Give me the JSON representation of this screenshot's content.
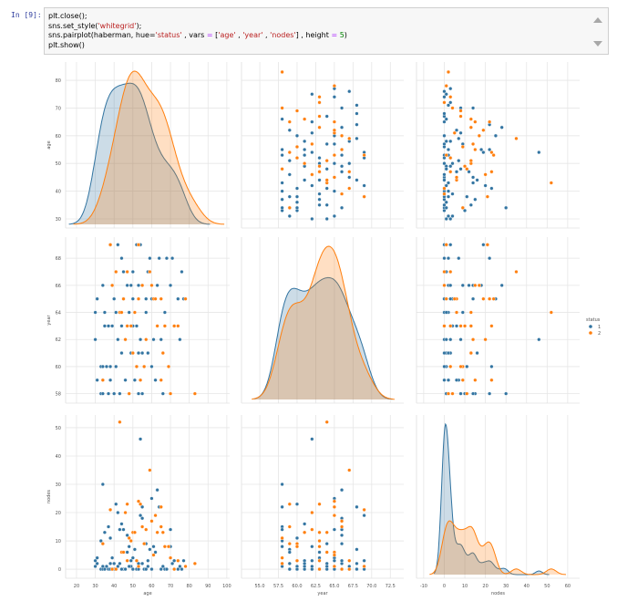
{
  "cell": {
    "prompt": "In [9]:",
    "lines": [
      [
        {
          "t": "plt.close();",
          "c": ""
        }
      ],
      [
        {
          "t": "sns.set_style(",
          "c": ""
        },
        {
          "t": "'whitegrid'",
          "c": "s"
        },
        {
          "t": ");",
          "c": ""
        }
      ],
      [
        {
          "t": "sns.pairplot(haberman, hue=",
          "c": ""
        },
        {
          "t": "'status'",
          "c": "s"
        },
        {
          "t": " , vars ",
          "c": ""
        },
        {
          "t": "=",
          "c": "o"
        },
        {
          "t": " [",
          "c": ""
        },
        {
          "t": "'age'",
          "c": "s"
        },
        {
          "t": " , ",
          "c": ""
        },
        {
          "t": "'year'",
          "c": "s"
        },
        {
          "t": " , ",
          "c": ""
        },
        {
          "t": "'nodes'",
          "c": "s"
        },
        {
          "t": "] , height ",
          "c": ""
        },
        {
          "t": "=",
          "c": "o"
        },
        {
          "t": " ",
          "c": ""
        },
        {
          "t": "5",
          "c": "k"
        },
        {
          "t": ")",
          "c": ""
        }
      ],
      [
        {
          "t": "plt.show()",
          "c": ""
        }
      ]
    ]
  },
  "chart_data": {
    "type": "scatter",
    "subtype": "pairplot",
    "vars": [
      "age",
      "year",
      "nodes"
    ],
    "hue": "status",
    "legend": {
      "title": "status",
      "entries": [
        {
          "label": "1",
          "color": "#3274a1"
        },
        {
          "label": "2",
          "color": "#ff7f0e"
        }
      ],
      "placement": "right"
    },
    "diagonal": "kde",
    "grid": true,
    "ticks": {
      "age": [
        "20",
        "30",
        "40",
        "50",
        "60",
        "70",
        "80",
        "90",
        "100"
      ],
      "year": [
        "55.0",
        "57.5",
        "60.0",
        "62.5",
        "65.0",
        "67.5",
        "70.0",
        "72.5"
      ],
      "year_y": [
        "58",
        "60",
        "62",
        "64",
        "66",
        "68"
      ],
      "age_y": [
        "30",
        "40",
        "50",
        "60",
        "70",
        "80"
      ],
      "nodes": [
        "-10",
        "0",
        "10",
        "20",
        "30",
        "40",
        "50",
        "60"
      ],
      "nodes_y": [
        "0",
        "10",
        "20",
        "30",
        "40",
        "50"
      ]
    },
    "axis_labels": {
      "age": "age",
      "year": "year",
      "nodes": "nodes"
    },
    "points": [
      [
        30,
        64,
        1,
        1
      ],
      [
        30,
        62,
        3,
        1
      ],
      [
        31,
        59,
        2,
        1
      ],
      [
        31,
        65,
        4,
        1
      ],
      [
        33,
        58,
        10,
        1
      ],
      [
        33,
        60,
        0,
        1
      ],
      [
        34,
        59,
        0,
        1
      ],
      [
        34,
        66,
        9,
        1
      ],
      [
        34,
        58,
        30,
        1
      ],
      [
        34,
        60,
        1,
        1
      ],
      [
        35,
        63,
        13,
        1
      ],
      [
        35,
        64,
        0,
        1
      ],
      [
        36,
        60,
        1,
        1
      ],
      [
        37,
        63,
        0,
        1
      ],
      [
        37,
        58,
        15,
        1
      ],
      [
        38,
        69,
        0,
        1
      ],
      [
        38,
        59,
        2,
        1
      ],
      [
        38,
        60,
        11,
        1
      ],
      [
        39,
        66,
        0,
        1
      ],
      [
        39,
        63,
        4,
        1
      ],
      [
        40,
        58,
        2,
        1
      ],
      [
        40,
        65,
        0,
        1
      ],
      [
        41,
        60,
        23,
        1
      ],
      [
        41,
        64,
        0,
        1
      ],
      [
        42,
        69,
        1,
        1
      ],
      [
        42,
        62,
        20,
        1
      ],
      [
        43,
        58,
        14,
        1
      ],
      [
        43,
        64,
        2,
        1
      ],
      [
        44,
        61,
        16,
        1
      ],
      [
        44,
        63,
        0,
        1
      ],
      [
        45,
        65,
        14,
        1
      ],
      [
        45,
        67,
        0,
        1
      ],
      [
        46,
        62,
        0,
        1
      ],
      [
        47,
        63,
        6,
        1
      ],
      [
        47,
        66,
        12,
        1
      ],
      [
        48,
        58,
        8,
        1
      ],
      [
        49,
        61,
        1,
        1
      ],
      [
        50,
        63,
        0,
        1
      ],
      [
        50,
        65,
        4,
        1
      ],
      [
        51,
        59,
        7,
        1
      ],
      [
        52,
        60,
        0,
        1
      ],
      [
        52,
        69,
        3,
        1
      ],
      [
        53,
        58,
        1,
        1
      ],
      [
        53,
        66,
        2,
        1
      ],
      [
        54,
        62,
        46,
        1
      ],
      [
        54,
        69,
        19,
        1
      ],
      [
        55,
        58,
        22,
        1
      ],
      [
        55,
        66,
        18,
        1
      ],
      [
        56,
        60,
        0,
        1
      ],
      [
        57,
        64,
        9,
        1
      ],
      [
        58,
        61,
        3,
        1
      ],
      [
        59,
        68,
        7,
        1
      ],
      [
        60,
        65,
        25,
        1
      ],
      [
        61,
        62,
        8,
        1
      ],
      [
        62,
        59,
        6,
        1
      ],
      [
        63,
        66,
        28,
        1
      ],
      [
        64,
        68,
        22,
        1
      ],
      [
        65,
        62,
        0,
        1
      ],
      [
        66,
        58,
        1,
        1
      ],
      [
        67,
        64,
        0,
        1
      ],
      [
        68,
        68,
        0,
        1
      ],
      [
        70,
        66,
        14,
        1
      ],
      [
        70,
        58,
        8,
        1
      ],
      [
        71,
        68,
        2,
        1
      ],
      [
        72,
        63,
        3,
        1
      ],
      [
        74,
        65,
        0,
        1
      ],
      [
        75,
        62,
        1,
        1
      ],
      [
        76,
        67,
        0,
        1
      ],
      [
        77,
        65,
        3,
        1
      ],
      [
        50,
        67,
        0,
        1
      ],
      [
        48,
        64,
        1,
        1
      ],
      [
        52,
        63,
        0,
        1
      ],
      [
        46,
        59,
        0,
        1
      ],
      [
        55,
        61,
        2,
        1
      ],
      [
        58,
        67,
        1,
        1
      ],
      [
        60,
        60,
        0,
        1
      ],
      [
        44,
        68,
        0,
        1
      ],
      [
        57,
        65,
        0,
        1
      ],
      [
        49,
        66,
        3,
        1
      ],
      [
        53,
        61,
        0,
        1
      ],
      [
        34,
        59,
        9,
        2
      ],
      [
        38,
        69,
        21,
        2
      ],
      [
        39,
        66,
        0,
        2
      ],
      [
        41,
        67,
        0,
        2
      ],
      [
        43,
        64,
        52,
        2
      ],
      [
        44,
        64,
        6,
        2
      ],
      [
        45,
        65,
        6,
        2
      ],
      [
        46,
        62,
        20,
        2
      ],
      [
        47,
        63,
        23,
        2
      ],
      [
        48,
        58,
        11,
        2
      ],
      [
        49,
        63,
        10,
        2
      ],
      [
        50,
        61,
        13,
        2
      ],
      [
        51,
        64,
        13,
        2
      ],
      [
        52,
        60,
        3,
        2
      ],
      [
        53,
        65,
        24,
        2
      ],
      [
        54,
        59,
        23,
        2
      ],
      [
        55,
        66,
        15,
        2
      ],
      [
        56,
        60,
        9,
        2
      ],
      [
        57,
        62,
        14,
        2
      ],
      [
        59,
        67,
        35,
        2
      ],
      [
        60,
        66,
        17,
        2
      ],
      [
        61,
        65,
        5,
        2
      ],
      [
        62,
        65,
        19,
        2
      ],
      [
        63,
        63,
        13,
        2
      ],
      [
        65,
        65,
        22,
        2
      ],
      [
        65,
        59,
        15,
        2
      ],
      [
        66,
        61,
        13,
        2
      ],
      [
        67,
        63,
        8,
        2
      ],
      [
        69,
        60,
        8,
        2
      ],
      [
        70,
        58,
        4,
        2
      ],
      [
        72,
        63,
        0,
        2
      ],
      [
        74,
        63,
        3,
        2
      ],
      [
        78,
        65,
        1,
        2
      ],
      [
        83,
        58,
        2,
        2
      ],
      [
        47,
        67,
        3,
        2
      ],
      [
        53,
        69,
        1,
        2
      ]
    ]
  }
}
